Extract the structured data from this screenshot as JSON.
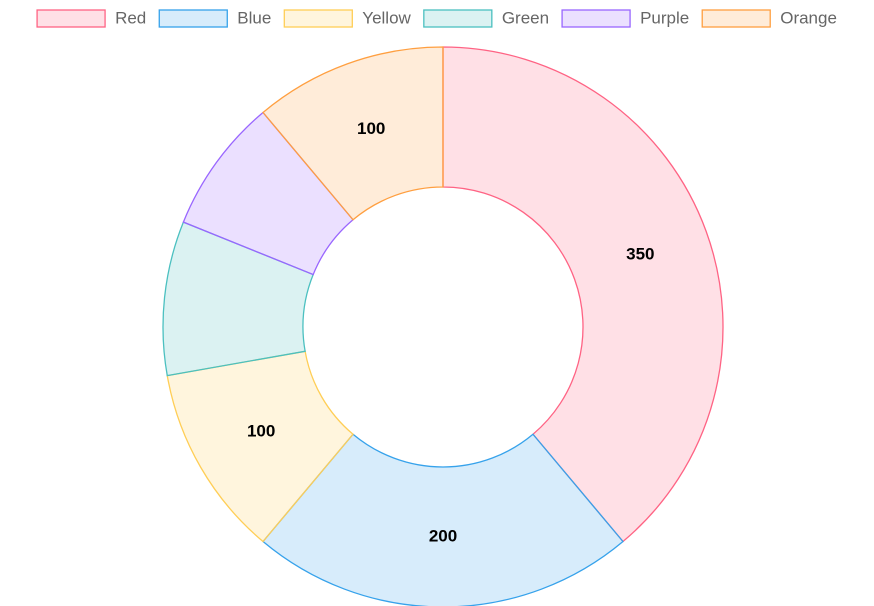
{
  "chart_data": {
    "type": "doughnut",
    "categories": [
      "Red",
      "Blue",
      "Yellow",
      "Green",
      "Purple",
      "Orange"
    ],
    "values": [
      350,
      200,
      100,
      80,
      70,
      100
    ],
    "value_labels": [
      "350",
      "200",
      "100",
      null,
      null,
      "100"
    ],
    "colors": [
      "rgba(255,99,132,0.2)",
      "rgba(54,162,235,0.2)",
      "rgba(255,206,86,0.2)",
      "rgba(75,192,192,0.2)",
      "rgba(153,102,255,0.2)",
      "rgba(255,159,64,0.2)"
    ],
    "border_colors": [
      "rgb(255,99,132)",
      "rgb(54,162,235)",
      "rgb(255,206,86)",
      "rgb(75,192,192)",
      "rgb(153,102,255)",
      "rgb(255,159,64)"
    ],
    "legend": "top"
  }
}
